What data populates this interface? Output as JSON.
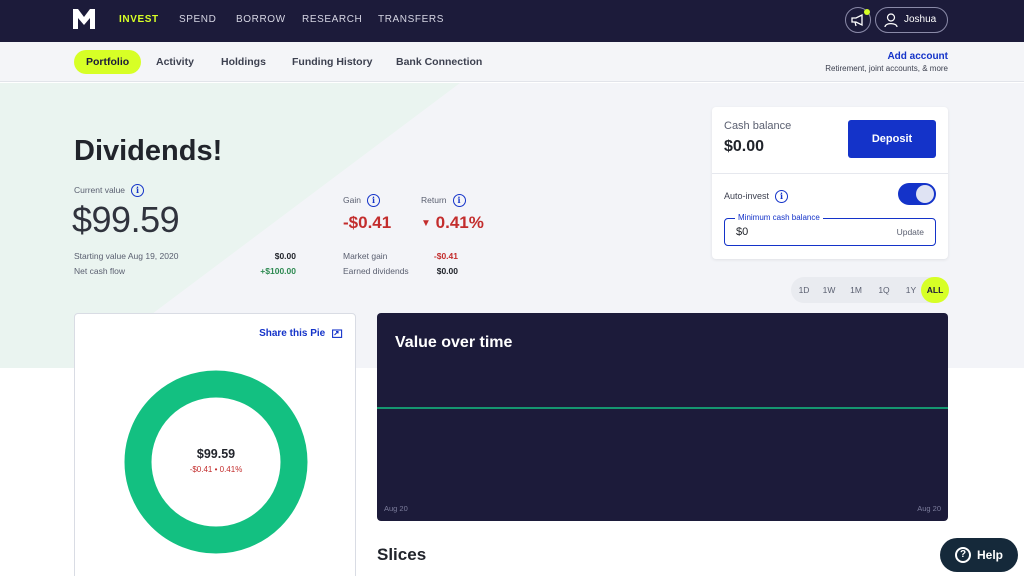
{
  "topnav": {
    "items": [
      "INVEST",
      "SPEND",
      "BORROW",
      "RESEARCH",
      "TRANSFERS"
    ],
    "active_index": 0,
    "user_name": "Joshua",
    "accent": "#d7ff26",
    "bg": "#1c1b3a"
  },
  "subnav": {
    "tabs": [
      "Portfolio",
      "Activity",
      "Holdings",
      "Funding History",
      "Bank Connection"
    ],
    "active_index": 0,
    "add_account": "Add account",
    "add_account_sub": "Retirement, joint accounts, & more"
  },
  "hero": {
    "title": "Dividends!",
    "current_value_label": "Current value",
    "current_value": "$99.59",
    "starting_value_label": "Starting value Aug 19, 2020",
    "starting_value": "$0.00",
    "net_cash_flow_label": "Net cash flow",
    "net_cash_flow": "+$100.00",
    "gain_label": "Gain",
    "gain_value": "-$0.41",
    "return_label": "Return",
    "return_value": "0.41%",
    "market_gain_label": "Market gain",
    "market_gain": "-$0.41",
    "earned_dividends_label": "Earned dividends",
    "earned_dividends": "$0.00"
  },
  "cash": {
    "label": "Cash balance",
    "value": "$0.00",
    "deposit_label": "Deposit",
    "auto_invest_label": "Auto-invest",
    "auto_invest_on": true,
    "min_balance_label": "Minimum cash balance",
    "min_balance_value": "$0",
    "update_label": "Update"
  },
  "range": {
    "options": [
      "1D",
      "1W",
      "1M",
      "1Q",
      "1Y",
      "ALL"
    ],
    "active": "ALL"
  },
  "pie": {
    "share_label": "Share this Pie",
    "center_value": "$99.59",
    "center_sub": "-$0.41 • 0.41%",
    "color": "#13c081"
  },
  "chart": {
    "title": "Value over time",
    "x_start_label": "Aug 20",
    "x_end_label": "Aug 20"
  },
  "chart_data": {
    "type": "line",
    "title": "Value over time",
    "x": [
      "Aug 20",
      "Aug 20"
    ],
    "series": [
      {
        "values": [
          99.59,
          99.59
        ]
      }
    ],
    "line_color": "#13c081"
  },
  "slices_title": "Slices",
  "help_label": "Help"
}
